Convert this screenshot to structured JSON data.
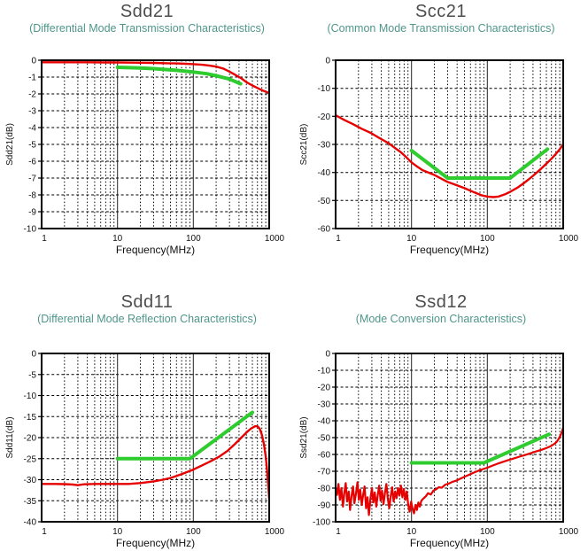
{
  "colors": {
    "trace_red": "#e60000",
    "limit_green": "#2ecc2e",
    "title_gray": "#4d4d4d",
    "subtitle_teal": "#4f968b",
    "axis_black": "#111111",
    "grid": "#000000",
    "background": "#ffffff"
  },
  "chart_data": [
    {
      "type": "line",
      "title": "Sdd21",
      "subtitle": "(Differential Mode Transmission Characteristics)",
      "xlabel": "Frequency(MHz)",
      "ylabel": "Sdd21(dB)",
      "xscale": "log",
      "xlim": [
        1,
        1000
      ],
      "ylim": [
        -10,
        0
      ],
      "yticks": [
        0,
        -1,
        -2,
        -3,
        -4,
        -5,
        -6,
        -7,
        -8,
        -9,
        -10
      ],
      "xticks": [
        1,
        10,
        100,
        1000
      ],
      "xtick_labels": [
        "1",
        "10",
        "100",
        "1000"
      ],
      "grid": "dashed",
      "legend": null,
      "series": [
        {
          "name": "measured",
          "color": "#e60000",
          "width": 2.4,
          "points": [
            [
              1,
              -0.12
            ],
            [
              2,
              -0.12
            ],
            [
              4,
              -0.12
            ],
            [
              7,
              -0.13
            ],
            [
              10,
              -0.13
            ],
            [
              15,
              -0.14
            ],
            [
              20,
              -0.15
            ],
            [
              30,
              -0.16
            ],
            [
              45,
              -0.18
            ],
            [
              60,
              -0.19
            ],
            [
              80,
              -0.21
            ],
            [
              100,
              -0.23
            ],
            [
              130,
              -0.27
            ],
            [
              160,
              -0.31
            ],
            [
              200,
              -0.38
            ],
            [
              250,
              -0.5
            ],
            [
              300,
              -0.68
            ],
            [
              360,
              -0.88
            ],
            [
              430,
              -1.08
            ],
            [
              500,
              -1.3
            ],
            [
              600,
              -1.5
            ],
            [
              700,
              -1.65
            ],
            [
              800,
              -1.78
            ],
            [
              900,
              -1.87
            ],
            [
              1000,
              -1.95
            ]
          ]
        },
        {
          "name": "limit",
          "color": "#2ecc2e",
          "width": 4,
          "points": [
            [
              10,
              -0.42
            ],
            [
              20,
              -0.46
            ],
            [
              30,
              -0.5
            ],
            [
              60,
              -0.6
            ],
            [
              100,
              -0.7
            ],
            [
              150,
              -0.8
            ],
            [
              200,
              -0.92
            ],
            [
              300,
              -1.12
            ],
            [
              420,
              -1.4
            ]
          ]
        }
      ]
    },
    {
      "type": "line",
      "title": "Scc21",
      "subtitle": "(Common Mode Transmission Characteristics)",
      "xlabel": "Frequency(MHz)",
      "ylabel": "Scc21(dB)",
      "xscale": "log",
      "xlim": [
        1,
        1000
      ],
      "ylim": [
        -60,
        0
      ],
      "yticks": [
        0,
        -10,
        -20,
        -30,
        -40,
        -50,
        -60
      ],
      "xticks": [
        1,
        10,
        100,
        1000
      ],
      "xtick_labels": [
        "1",
        "10",
        "100",
        "1000"
      ],
      "grid": "dashed",
      "legend": null,
      "series": [
        {
          "name": "measured",
          "color": "#e60000",
          "width": 2.4,
          "points": [
            [
              1,
              -19.6
            ],
            [
              1.3,
              -21.3
            ],
            [
              1.7,
              -22.8
            ],
            [
              2.2,
              -24.4
            ],
            [
              2.9,
              -25.9
            ],
            [
              3.8,
              -27.8
            ],
            [
              5,
              -29.6
            ],
            [
              6,
              -31.2
            ],
            [
              7.2,
              -32.7
            ],
            [
              8.5,
              -34.5
            ],
            [
              10,
              -36.4
            ],
            [
              12,
              -38
            ],
            [
              14,
              -39.2
            ],
            [
              17,
              -40.1
            ],
            [
              20,
              -40.9
            ],
            [
              25,
              -42.3
            ],
            [
              30,
              -43.4
            ],
            [
              40,
              -44.6
            ],
            [
              50,
              -45.6
            ],
            [
              60,
              -46.5
            ],
            [
              70,
              -47.3
            ],
            [
              85,
              -48.2
            ],
            [
              100,
              -48.6
            ],
            [
              120,
              -48.8
            ],
            [
              140,
              -48.6
            ],
            [
              170,
              -47.8
            ],
            [
              200,
              -46.9
            ],
            [
              250,
              -45.4
            ],
            [
              300,
              -43.9
            ],
            [
              350,
              -42.5
            ],
            [
              400,
              -41.2
            ],
            [
              500,
              -38.9
            ],
            [
              600,
              -36.9
            ],
            [
              700,
              -35.1
            ],
            [
              800,
              -33.4
            ],
            [
              900,
              -31.7
            ],
            [
              1000,
              -30
            ]
          ]
        },
        {
          "name": "limit",
          "color": "#2ecc2e",
          "width": 4,
          "points": [
            [
              10,
              -32.2
            ],
            [
              30,
              -42
            ],
            [
              200,
              -42
            ],
            [
              620,
              -31.7
            ]
          ]
        }
      ]
    },
    {
      "type": "line",
      "title": "Sdd11",
      "subtitle": "(Differential Mode Reflection Characteristics)",
      "xlabel": "Frequency(MHz)",
      "ylabel": "Sdd11(dB)",
      "xscale": "log",
      "xlim": [
        1,
        1000
      ],
      "ylim": [
        -40,
        0
      ],
      "yticks": [
        0,
        -5,
        -10,
        -15,
        -20,
        -25,
        -30,
        -35,
        -40
      ],
      "xticks": [
        1,
        10,
        100,
        1000
      ],
      "xtick_labels": [
        "1",
        "10",
        "100",
        "1000"
      ],
      "grid": "dashed",
      "legend": null,
      "series": [
        {
          "name": "measured",
          "color": "#e60000",
          "width": 2.4,
          "points": [
            [
              1,
              -31
            ],
            [
              1.5,
              -31
            ],
            [
              2,
              -31.05
            ],
            [
              2.6,
              -31.15
            ],
            [
              3,
              -31.3
            ],
            [
              3.6,
              -31.1
            ],
            [
              5,
              -31
            ],
            [
              7,
              -31
            ],
            [
              10,
              -31
            ],
            [
              14,
              -31
            ],
            [
              20,
              -30.8
            ],
            [
              30,
              -30.4
            ],
            [
              40,
              -30
            ],
            [
              50,
              -29.6
            ],
            [
              70,
              -28.7
            ],
            [
              100,
              -27.6
            ],
            [
              130,
              -26.6
            ],
            [
              170,
              -25.6
            ],
            [
              220,
              -24.5
            ],
            [
              280,
              -23.2
            ],
            [
              350,
              -21.6
            ],
            [
              420,
              -20.2
            ],
            [
              500,
              -18.8
            ],
            [
              570,
              -17.9
            ],
            [
              650,
              -17.3
            ],
            [
              700,
              -17.3
            ],
            [
              750,
              -17.9
            ],
            [
              800,
              -19.3
            ],
            [
              850,
              -21.5
            ],
            [
              900,
              -24.5
            ],
            [
              940,
              -28
            ],
            [
              970,
              -31.5
            ],
            [
              1000,
              -34.5
            ]
          ]
        },
        {
          "name": "limit",
          "color": "#2ecc2e",
          "width": 4,
          "points": [
            [
              10,
              -25
            ],
            [
              90,
              -25
            ],
            [
              600,
              -14
            ]
          ]
        }
      ]
    },
    {
      "type": "line",
      "title": "Ssd12",
      "subtitle": "(Mode Conversion Characteristics)",
      "xlabel": "Frequency(MHz)",
      "ylabel": "Ssd21(dB)",
      "xscale": "log",
      "xlim": [
        1,
        1000
      ],
      "ylim": [
        -100,
        0
      ],
      "yticks": [
        0,
        -10,
        -20,
        -30,
        -40,
        -50,
        -60,
        -70,
        -80,
        -90,
        -100
      ],
      "xticks": [
        1,
        10,
        100,
        1000
      ],
      "xtick_labels": [
        "1",
        "10",
        "100",
        "1000"
      ],
      "grid": "dashed",
      "legend": null,
      "series": [
        {
          "name": "measured",
          "color": "#e60000",
          "width": 2.2,
          "points": [
            [
              1,
              -80
            ],
            [
              1.045,
              -84
            ],
            [
              1.09,
              -77.5
            ],
            [
              1.14,
              -87
            ],
            [
              1.19,
              -80
            ],
            [
              1.25,
              -91
            ],
            [
              1.3,
              -83
            ],
            [
              1.36,
              -77
            ],
            [
              1.42,
              -88
            ],
            [
              1.49,
              -82
            ],
            [
              1.55,
              -93
            ],
            [
              1.62,
              -85
            ],
            [
              1.7,
              -79
            ],
            [
              1.77,
              -89
            ],
            [
              1.85,
              -83.5
            ],
            [
              1.94,
              -76.5
            ],
            [
              2.02,
              -87
            ],
            [
              2.11,
              -81
            ],
            [
              2.21,
              -90
            ],
            [
              2.31,
              -84
            ],
            [
              2.41,
              -79
            ],
            [
              2.52,
              -92
            ],
            [
              2.63,
              -85.5
            ],
            [
              2.75,
              -96
            ],
            [
              2.88,
              -86
            ],
            [
              3.01,
              -80
            ],
            [
              3.14,
              -88.5
            ],
            [
              3.28,
              -82.5
            ],
            [
              3.43,
              -91
            ],
            [
              3.59,
              -84
            ],
            [
              3.75,
              -78.5
            ],
            [
              3.92,
              -87.5
            ],
            [
              4.09,
              -81.5
            ],
            [
              4.28,
              -89.5
            ],
            [
              4.47,
              -83
            ],
            [
              4.67,
              -77.5
            ],
            [
              4.88,
              -86.5
            ],
            [
              5.1,
              -92
            ],
            [
              5.33,
              -84.5
            ],
            [
              5.57,
              -79.5
            ],
            [
              5.82,
              -88
            ],
            [
              6.09,
              -82
            ],
            [
              6.36,
              -86
            ],
            [
              6.65,
              -80
            ],
            [
              6.95,
              -84.5
            ],
            [
              7.26,
              -78.5
            ],
            [
              7.59,
              -85.5
            ],
            [
              7.93,
              -80.5
            ],
            [
              8.29,
              -87
            ],
            [
              8.66,
              -82
            ],
            [
              9.05,
              -90
            ],
            [
              9.46,
              -94
            ],
            [
              9.89,
              -88
            ],
            [
              10.3,
              -92
            ],
            [
              10.8,
              -95
            ],
            [
              11.3,
              -90
            ],
            [
              11.8,
              -93
            ],
            [
              12.3,
              -88.5
            ],
            [
              12.9,
              -91
            ],
            [
              13.5,
              -87.5
            ],
            [
              14.5,
              -86
            ],
            [
              15.5,
              -84.8
            ],
            [
              16.5,
              -83
            ],
            [
              18,
              -83.8
            ],
            [
              19.5,
              -81.5
            ],
            [
              21,
              -80.8
            ],
            [
              23,
              -79.4
            ],
            [
              25,
              -79.8
            ],
            [
              28,
              -77.9
            ],
            [
              31,
              -77.3
            ],
            [
              35,
              -76.2
            ],
            [
              39,
              -75.6
            ],
            [
              44,
              -74.4
            ],
            [
              50,
              -73.3
            ],
            [
              58,
              -72
            ],
            [
              68,
              -70.6
            ],
            [
              80,
              -69.3
            ],
            [
              92,
              -68.4
            ],
            [
              100,
              -67.9
            ],
            [
              115,
              -66.8
            ],
            [
              135,
              -65.6
            ],
            [
              160,
              -64.4
            ],
            [
              190,
              -63.3
            ],
            [
              225,
              -62.3
            ],
            [
              265,
              -61.3
            ],
            [
              310,
              -60.4
            ],
            [
              370,
              -59.3
            ],
            [
              440,
              -58.2
            ],
            [
              520,
              -57.2
            ],
            [
              600,
              -56.2
            ],
            [
              680,
              -55.1
            ],
            [
              750,
              -54
            ],
            [
              820,
              -52.5
            ],
            [
              870,
              -50.8
            ],
            [
              920,
              -48.8
            ],
            [
              960,
              -46.5
            ],
            [
              1000,
              -44
            ]
          ]
        },
        {
          "name": "limit",
          "color": "#2ecc2e",
          "width": 4,
          "points": [
            [
              10,
              -65
            ],
            [
              90,
              -65
            ],
            [
              650,
              -48
            ]
          ]
        }
      ]
    }
  ]
}
